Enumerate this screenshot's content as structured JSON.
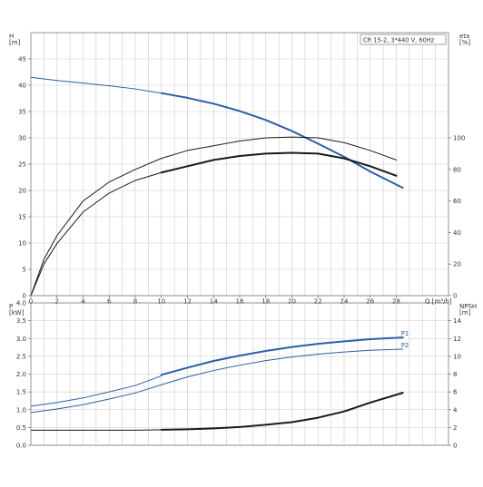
{
  "legend_box": "CR 15-2, 3*440 V, 60Hz",
  "chart_data": [
    {
      "type": "line",
      "panel": "top",
      "title": "CR 15-2, 3*440 V, 60Hz",
      "xlabel": "Q [m³/h]",
      "x_ticks": [
        "0",
        "2",
        "4",
        "6",
        "8",
        "10",
        "12",
        "14",
        "16",
        "18",
        "20",
        "22",
        "24",
        "26",
        "28"
      ],
      "xlim": [
        0,
        32
      ],
      "ylabel_left": "H\n[m]",
      "ylabel_left_lines": [
        "H",
        "[m]"
      ],
      "left_ticks": [
        "0",
        "5",
        "10",
        "15",
        "20",
        "25",
        "30",
        "35",
        "40",
        "45"
      ],
      "ylim_left": [
        0,
        50
      ],
      "ylabel_right_lines": [
        "eta",
        "[%]"
      ],
      "right_ticks": [
        "0",
        "20",
        "40",
        "60",
        "80",
        "100"
      ],
      "ylim_right": [
        0,
        166.67
      ],
      "grid": true,
      "series": [
        {
          "name": "",
          "axis": "left",
          "color": "#2a5fa8",
          "thin_points": [
            [
              0,
              41.5
            ],
            [
              2,
              40.9
            ],
            [
              4,
              40.4
            ],
            [
              6,
              39.9
            ],
            [
              8,
              39.3
            ],
            [
              10,
              38.5
            ]
          ],
          "thick_points": [
            [
              10,
              38.5
            ],
            [
              12,
              37.6
            ],
            [
              14,
              36.5
            ],
            [
              16,
              35.1
            ],
            [
              18,
              33.4
            ],
            [
              20,
              31.3
            ],
            [
              22,
              28.9
            ],
            [
              24,
              26.4
            ],
            [
              26,
              23.6
            ],
            [
              28.5,
              20.5
            ]
          ]
        },
        {
          "name": "",
          "axis": "right",
          "color": "#1a1a1a",
          "thin_points": [
            [
              0,
              0
            ],
            [
              1,
              23
            ],
            [
              2,
              38
            ],
            [
              4,
              60
            ],
            [
              6,
              72
            ],
            [
              8,
              80
            ],
            [
              10,
              87
            ],
            [
              12,
              92
            ],
            [
              14,
              95
            ],
            [
              16,
              98
            ],
            [
              18,
              100
            ],
            [
              20,
              100.5
            ],
            [
              22,
              100
            ],
            [
              24,
              97
            ],
            [
              26,
              92
            ],
            [
              28,
              86
            ]
          ],
          "thick_points": []
        },
        {
          "name": "",
          "axis": "right",
          "color": "#1a1a1a",
          "thin_points": [
            [
              0,
              0
            ],
            [
              1,
              20
            ],
            [
              2,
              33
            ],
            [
              4,
              53
            ],
            [
              6,
              65
            ],
            [
              8,
              73
            ],
            [
              10,
              78
            ]
          ],
          "thick_points": [
            [
              10,
              78
            ],
            [
              12,
              82
            ],
            [
              14,
              86
            ],
            [
              16,
              88.5
            ],
            [
              18,
              90
            ],
            [
              20,
              90.5
            ],
            [
              22,
              90
            ],
            [
              24,
              87
            ],
            [
              26,
              82
            ],
            [
              28,
              76
            ]
          ]
        }
      ]
    },
    {
      "type": "line",
      "panel": "bottom",
      "xlim": [
        0,
        32
      ],
      "ylabel_left": "P\n[kW]",
      "ylabel_left_lines": [
        "P",
        "[kW]"
      ],
      "left_ticks": [
        "0.0",
        "0.5",
        "1.0",
        "1.5",
        "2.0",
        "2.5",
        "3.0",
        "3.5",
        "4.0"
      ],
      "ylim_left": [
        0,
        4.0
      ],
      "ylabel_right_lines": [
        "NPSH",
        "[m]"
      ],
      "right_ticks": [
        "0",
        "2",
        "4",
        "6",
        "8",
        "10",
        "12",
        "14"
      ],
      "ylim_right": [
        0,
        16
      ],
      "grid": true,
      "series": [
        {
          "name": "P1",
          "axis": "left",
          "color": "#2a5fa8",
          "thin_points": [
            [
              0,
              1.1
            ],
            [
              2,
              1.2
            ],
            [
              4,
              1.33
            ],
            [
              6,
              1.5
            ],
            [
              8,
              1.68
            ],
            [
              10,
              1.95
            ]
          ],
          "thick_points": [
            [
              10,
              1.98
            ],
            [
              12,
              2.18
            ],
            [
              14,
              2.37
            ],
            [
              16,
              2.52
            ],
            [
              18,
              2.65
            ],
            [
              20,
              2.76
            ],
            [
              22,
              2.85
            ],
            [
              24,
              2.92
            ],
            [
              26,
              2.98
            ],
            [
              28.5,
              3.03
            ]
          ]
        },
        {
          "name": "P2",
          "axis": "left",
          "color": "#2a5fa8",
          "thin_points": [
            [
              0,
              0.92
            ],
            [
              2,
              1.02
            ],
            [
              4,
              1.14
            ],
            [
              6,
              1.3
            ],
            [
              8,
              1.47
            ],
            [
              10,
              1.7
            ],
            [
              12,
              1.92
            ],
            [
              14,
              2.1
            ],
            [
              16,
              2.25
            ],
            [
              18,
              2.38
            ],
            [
              20,
              2.48
            ],
            [
              22,
              2.56
            ],
            [
              24,
              2.62
            ],
            [
              26,
              2.67
            ],
            [
              28.5,
              2.7
            ]
          ],
          "thick_points": []
        },
        {
          "name": "",
          "axis": "right",
          "color": "#1a1a1a",
          "thin_points": [
            [
              0,
              1.7
            ],
            [
              4,
              1.7
            ],
            [
              8,
              1.7
            ],
            [
              10,
              1.75
            ]
          ],
          "thick_points": [
            [
              10,
              1.75
            ],
            [
              12,
              1.8
            ],
            [
              14,
              1.9
            ],
            [
              16,
              2.05
            ],
            [
              18,
              2.3
            ],
            [
              20,
              2.6
            ],
            [
              22,
              3.1
            ],
            [
              24,
              3.8
            ],
            [
              26,
              4.8
            ],
            [
              28.5,
              5.9
            ]
          ]
        }
      ]
    }
  ]
}
